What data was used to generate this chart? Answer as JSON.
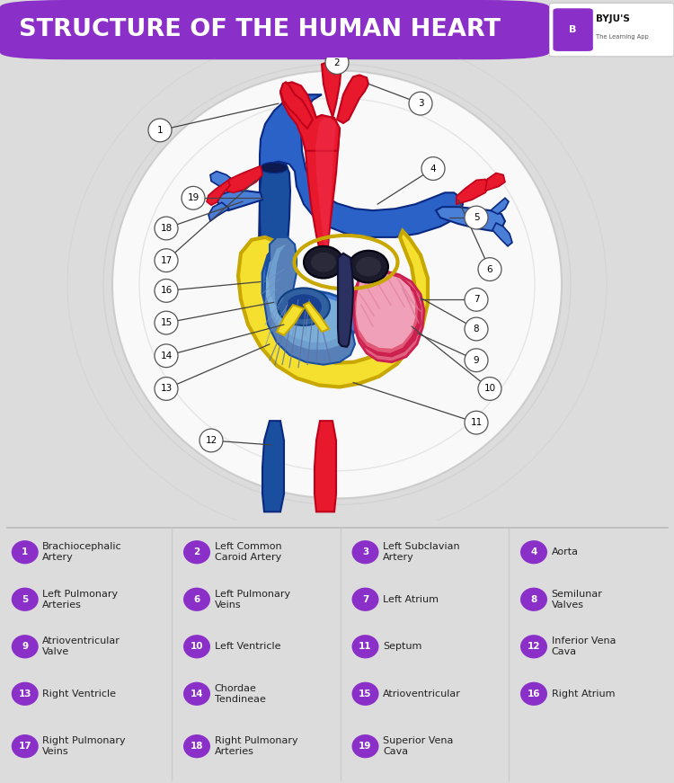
{
  "title": "STRUCTURE OF THE HUMAN HEART",
  "title_color": "#ffffff",
  "title_bg_color": "#8B2FC9",
  "bg_color": "#DCDCDC",
  "purple_color": "#8B2FC9",
  "aorta_red": "#E8192C",
  "aorta_red_dark": "#C0001A",
  "blue_dark": "#1A4FA0",
  "blue_med": "#2B62C8",
  "blue_light": "#4A7FD8",
  "blue_pale": "#7AADD8",
  "yellow": "#F5E030",
  "yellow_dark": "#C8A800",
  "pink_light": "#F0A0B8",
  "pink_med": "#E06080",
  "pink_dark": "#CC2050",
  "heart_bg": "#C8D8F0",
  "black_valve": "#1A1A2A",
  "labels": [
    {
      "num": 1,
      "text": "Brachiocephalic\nArtery",
      "col": 0,
      "row": 0
    },
    {
      "num": 2,
      "text": "Left Common\nCaroid Artery",
      "col": 1,
      "row": 0
    },
    {
      "num": 3,
      "text": "Left Subclavian\nArtery",
      "col": 2,
      "row": 0
    },
    {
      "num": 4,
      "text": "Aorta",
      "col": 3,
      "row": 0
    },
    {
      "num": 5,
      "text": "Left Pulmonary\nArteries",
      "col": 0,
      "row": 1
    },
    {
      "num": 6,
      "text": "Left Pulmonary\nVeins",
      "col": 1,
      "row": 1
    },
    {
      "num": 7,
      "text": "Left Atrium",
      "col": 2,
      "row": 1
    },
    {
      "num": 8,
      "text": "Semilunar\nValves",
      "col": 3,
      "row": 1
    },
    {
      "num": 9,
      "text": "Atrioventricular\nValve",
      "col": 0,
      "row": 2
    },
    {
      "num": 10,
      "text": "Left Ventricle",
      "col": 1,
      "row": 2
    },
    {
      "num": 11,
      "text": "Septum",
      "col": 2,
      "row": 2
    },
    {
      "num": 12,
      "text": "Inferior Vena\nCava",
      "col": 3,
      "row": 2
    },
    {
      "num": 13,
      "text": "Right Ventricle",
      "col": 0,
      "row": 3
    },
    {
      "num": 14,
      "text": "Chordae\nTendineae",
      "col": 1,
      "row": 3
    },
    {
      "num": 15,
      "text": "Atrioventricular",
      "col": 2,
      "row": 3
    },
    {
      "num": 16,
      "text": "Right Atrium",
      "col": 3,
      "row": 3
    },
    {
      "num": 17,
      "text": "Right Pulmonary\nVeins",
      "col": 0,
      "row": 4
    },
    {
      "num": 18,
      "text": "Right Pulmonary\nArteries",
      "col": 1,
      "row": 4
    },
    {
      "num": 19,
      "text": "Superior Vena\nCava",
      "col": 2,
      "row": 4
    }
  ]
}
